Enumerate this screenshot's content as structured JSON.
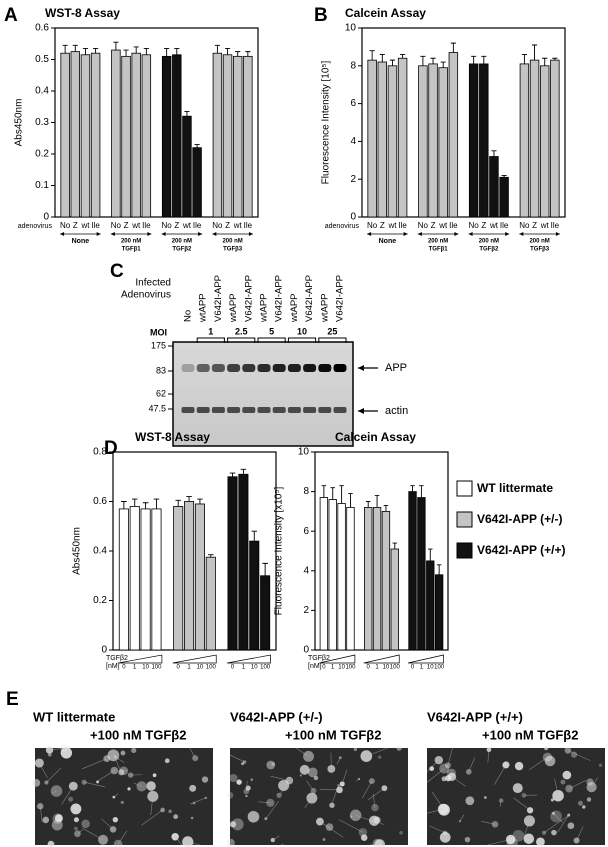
{
  "panel_labels": [
    "A",
    "B",
    "C",
    "D",
    "E"
  ],
  "chart_data": [
    {
      "type": "bar",
      "title": "WST-8 Assay",
      "y_label": "Abs450nm",
      "row_label": "adenovirus",
      "categories": [
        "No",
        "Z",
        "wt",
        "Ile",
        "No",
        "Z",
        "wt",
        "Ile",
        "No",
        "Z",
        "wt",
        "Ile",
        "No",
        "Z",
        "wt",
        "Ile"
      ],
      "groups": [
        [
          "None"
        ],
        [
          "200 nM",
          "TGFβ1"
        ],
        [
          "200 nM",
          "TGFβ2"
        ],
        [
          "200 nM",
          "TGFβ3"
        ]
      ],
      "group_colors": [
        "#c4c4c4",
        "#c4c4c4",
        "#111111",
        "#c4c4c4"
      ],
      "values": [
        0.52,
        0.525,
        0.515,
        0.52,
        0.53,
        0.51,
        0.52,
        0.515,
        0.51,
        0.515,
        0.32,
        0.22,
        0.52,
        0.515,
        0.51,
        0.51
      ],
      "errors": [
        0.025,
        0.02,
        0.02,
        0.015,
        0.025,
        0.02,
        0.02,
        0.02,
        0.025,
        0.02,
        0.015,
        0.01,
        0.025,
        0.02,
        0.015,
        0.015
      ],
      "ylim": [
        0,
        0.6
      ],
      "yticks": [
        0,
        0.1,
        0.2,
        0.3,
        0.4,
        0.5,
        0.6
      ]
    },
    {
      "type": "bar",
      "title": "Calcein Assay",
      "y_label": "Fluorescence Intensity [10⁵]",
      "row_label": "adenovirus",
      "categories": [
        "No",
        "Z",
        "wt",
        "Ile",
        "No",
        "Z",
        "wt",
        "Ile",
        "No",
        "Z",
        "wt",
        "Ile",
        "No",
        "Z",
        "wt",
        "Ile"
      ],
      "groups": [
        [
          "None"
        ],
        [
          "200 nM",
          "TGFβ1"
        ],
        [
          "200 nM",
          "TGFβ2"
        ],
        [
          "200 nM",
          "TGFβ3"
        ]
      ],
      "group_colors": [
        "#c4c4c4",
        "#c4c4c4",
        "#111111",
        "#c4c4c4"
      ],
      "values": [
        8.3,
        8.2,
        8.0,
        8.4,
        8.0,
        8.1,
        7.9,
        8.7,
        8.1,
        8.1,
        3.2,
        2.1,
        8.1,
        8.3,
        8.0,
        8.3
      ],
      "errors": [
        0.5,
        0.4,
        0.3,
        0.2,
        0.5,
        0.3,
        0.3,
        0.5,
        0.4,
        0.4,
        0.3,
        0.1,
        0.5,
        0.8,
        0.4,
        0.1
      ],
      "ylim": [
        0,
        10
      ],
      "yticks": [
        0,
        2,
        4,
        6,
        8,
        10
      ]
    },
    {
      "type": "bar",
      "title": "WST-8 Assay",
      "y_label": "Abs450nm",
      "x_label": [
        "TGFβ2",
        "[nM]"
      ],
      "categories": [
        "0",
        "1",
        "10",
        "100",
        "0",
        "1",
        "10",
        "100",
        "0",
        "1",
        "10",
        "100"
      ],
      "group_colors": [
        "#ffffff",
        "#c4c4c4",
        "#111111"
      ],
      "values": [
        0.57,
        0.58,
        0.57,
        0.57,
        0.58,
        0.6,
        0.59,
        0.375,
        0.7,
        0.71,
        0.44,
        0.3
      ],
      "errors": [
        0.03,
        0.03,
        0.025,
        0.04,
        0.025,
        0.02,
        0.02,
        0.01,
        0.015,
        0.02,
        0.04,
        0.05
      ],
      "ylim": [
        0,
        0.8
      ],
      "yticks": [
        0,
        0.2,
        0.4,
        0.6,
        0.8
      ]
    },
    {
      "type": "bar",
      "title": "Calcein Assay",
      "y_label": "Fluorescence Intensity [x10⁵]",
      "x_label": [
        "TGFβ2",
        "[nM]"
      ],
      "categories": [
        "0",
        "1",
        "10",
        "100",
        "0",
        "1",
        "10",
        "100",
        "0",
        "1",
        "10",
        "100"
      ],
      "group_colors": [
        "#ffffff",
        "#c4c4c4",
        "#111111"
      ],
      "values": [
        7.7,
        7.6,
        7.4,
        7.2,
        7.2,
        7.2,
        7.0,
        5.1,
        8.0,
        7.7,
        4.5,
        3.8
      ],
      "errors": [
        0.6,
        0.6,
        0.9,
        0.7,
        0.3,
        0.6,
        0.3,
        0.3,
        0.3,
        0.6,
        0.6,
        0.5
      ],
      "ylim": [
        0,
        10
      ],
      "yticks": [
        0,
        2,
        4,
        6,
        8,
        10
      ]
    }
  ],
  "legend": [
    {
      "name": "WT littermate",
      "color": "#ffffff"
    },
    {
      "name": "V642I-APP (+/-)",
      "color": "#c4c4c4"
    },
    {
      "name": "V642I-APP (+/+)",
      "color": "#111111"
    }
  ],
  "blot": {
    "header": [
      "Infected",
      "Adenovirus"
    ],
    "lanes": [
      "No",
      "wtAPP",
      "V642I-APP",
      "wtAPP",
      "V642I-APP",
      "wtAPP",
      "V642I-APP",
      "wtAPP",
      "V642I-APP",
      "wtAPP",
      "V642I-APP"
    ],
    "moi_label": "MOI",
    "moi": [
      "1",
      "2.5",
      "5",
      "10",
      "25"
    ],
    "markers": [
      175,
      83,
      62,
      47.5
    ],
    "bands": [
      "APP",
      "actin"
    ]
  },
  "micrographs": [
    {
      "lines": [
        "WT littermate",
        "+100 nM TGFβ2"
      ]
    },
    {
      "lines": [
        "V642I-APP (+/-)",
        "+100 nM TGFβ2"
      ]
    },
    {
      "lines": [
        "V642I-APP (+/+)",
        "+100 nM TGFβ2"
      ]
    }
  ]
}
